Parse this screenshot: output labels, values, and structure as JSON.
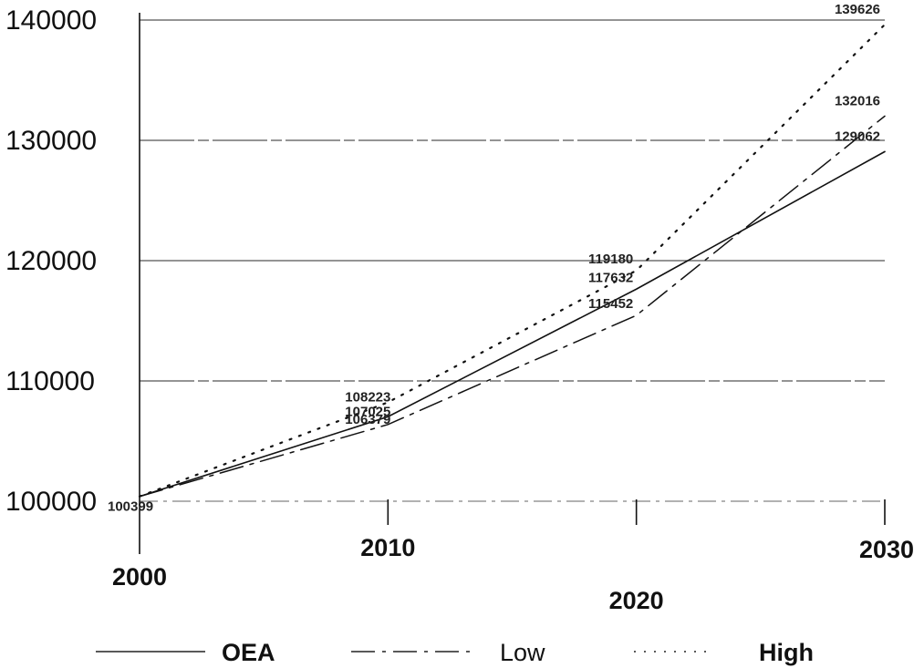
{
  "chart_data": {
    "type": "line",
    "title": "",
    "xlabel": "",
    "ylabel": "",
    "x": [
      2000,
      2010,
      2020,
      2030
    ],
    "x_tick_labels": [
      "2000",
      "2010",
      "2020",
      "2030"
    ],
    "y_tick_labels": [
      "100000",
      "110000",
      "120000",
      "130000",
      "140000"
    ],
    "ylim": [
      100000,
      140000
    ],
    "grid": true,
    "legend_position": "bottom",
    "series": [
      {
        "name": "OEA",
        "values": [
          100399,
          107025,
          117632,
          129062
        ],
        "labels": [
          "100399",
          "107025",
          "117632",
          "129062"
        ],
        "dash": "solid"
      },
      {
        "name": "Low",
        "values": [
          100399,
          106379,
          115452,
          132016
        ],
        "labels": [
          "",
          "106379",
          "115452",
          "132016"
        ],
        "dash": "longdash"
      },
      {
        "name": "High",
        "values": [
          100399,
          108223,
          119180,
          139626
        ],
        "labels": [
          "",
          "108223",
          "119180",
          "139626"
        ],
        "dash": "dotted"
      }
    ]
  }
}
